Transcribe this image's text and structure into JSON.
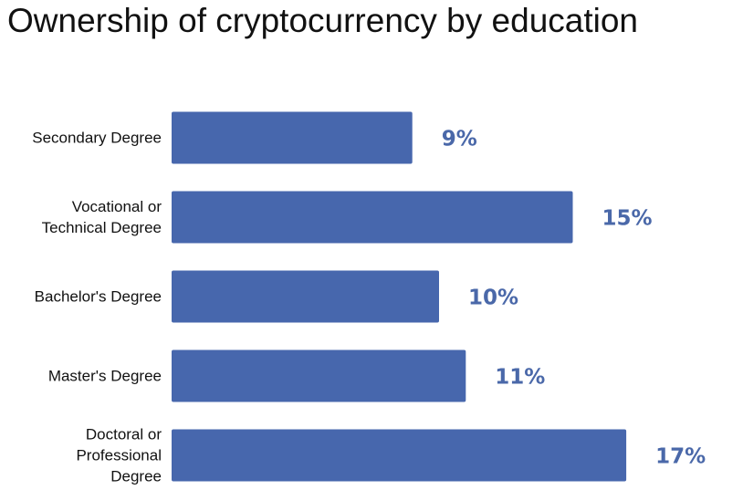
{
  "chart_data": {
    "type": "bar",
    "orientation": "horizontal",
    "title": "Ownership of cryptocurrency by education",
    "categories": [
      "Secondary Degree",
      "Vocational or Technical Degree",
      "Bachelor's Degree",
      "Master's Degree",
      "Doctoral or Professional Degree"
    ],
    "values": [
      9,
      15,
      10,
      11,
      17
    ],
    "value_labels": [
      "9%",
      "15%",
      "10%",
      "11%",
      "17%"
    ],
    "color": "#4767ad",
    "label_color": "#4a68a9"
  }
}
